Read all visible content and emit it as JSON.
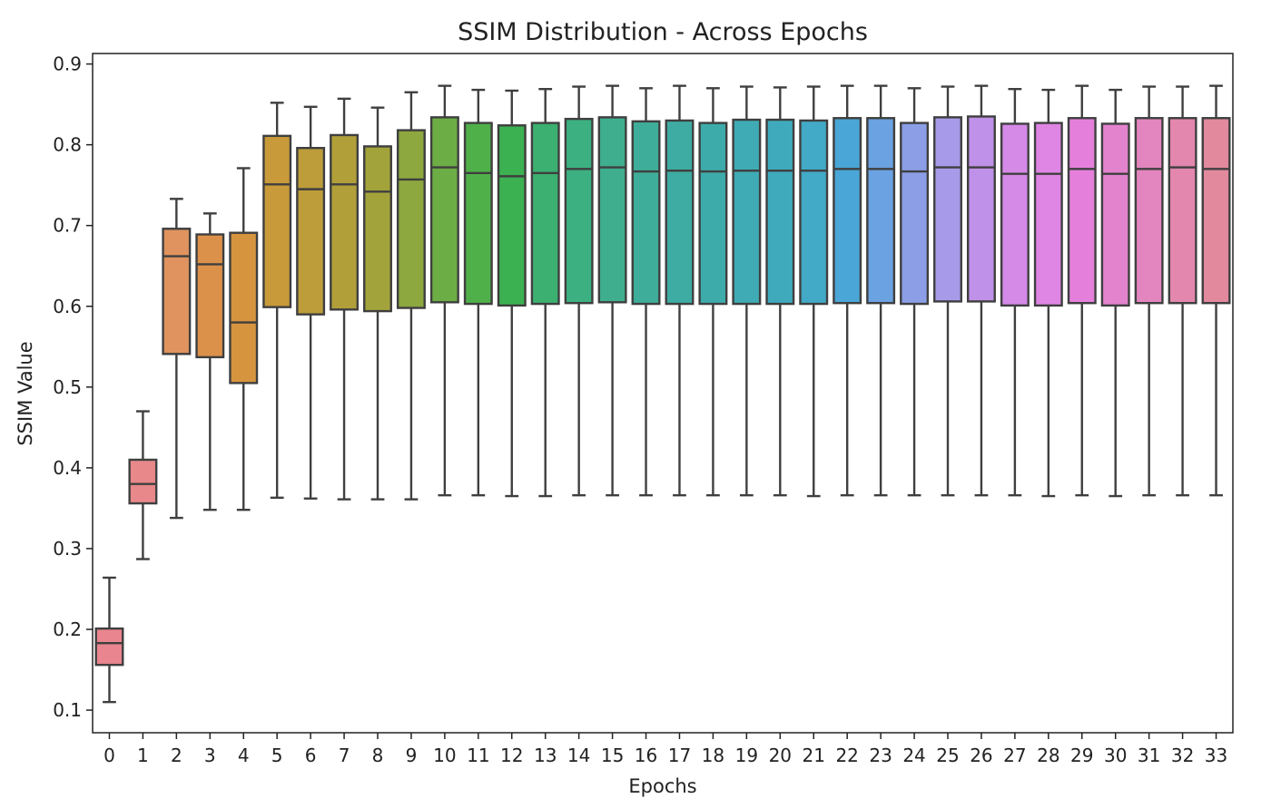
{
  "chart_data": {
    "type": "box",
    "title": "SSIM Distribution - Across Epochs",
    "xlabel": "Epochs",
    "ylabel": "SSIM Value",
    "ylim": [
      0.072,
      0.913
    ],
    "yticks": [
      0.1,
      0.2,
      0.3,
      0.4,
      0.5,
      0.6,
      0.7,
      0.8,
      0.9
    ],
    "ytick_labels": [
      "0.1",
      "0.2",
      "0.3",
      "0.4",
      "0.5",
      "0.6",
      "0.7",
      "0.8",
      "0.9"
    ],
    "grid": false,
    "legend": "none",
    "categories": [
      "0",
      "1",
      "2",
      "3",
      "4",
      "5",
      "6",
      "7",
      "8",
      "9",
      "10",
      "11",
      "12",
      "13",
      "14",
      "15",
      "16",
      "17",
      "18",
      "19",
      "20",
      "21",
      "22",
      "23",
      "24",
      "25",
      "26",
      "27",
      "28",
      "29",
      "30",
      "31",
      "32",
      "33"
    ],
    "boxes": [
      {
        "min": 0.11,
        "q1": 0.156,
        "median": 0.183,
        "q3": 0.201,
        "max": 0.264,
        "color": "#e8858e"
      },
      {
        "min": 0.287,
        "q1": 0.356,
        "median": 0.38,
        "q3": 0.41,
        "max": 0.47,
        "color": "#e8888a"
      },
      {
        "min": 0.338,
        "q1": 0.541,
        "median": 0.662,
        "q3": 0.696,
        "max": 0.733,
        "color": "#e0935f"
      },
      {
        "min": 0.348,
        "q1": 0.537,
        "median": 0.652,
        "q3": 0.689,
        "max": 0.715,
        "color": "#dc914a"
      },
      {
        "min": 0.348,
        "q1": 0.505,
        "median": 0.58,
        "q3": 0.691,
        "max": 0.771,
        "color": "#d7943f"
      },
      {
        "min": 0.363,
        "q1": 0.599,
        "median": 0.751,
        "q3": 0.811,
        "max": 0.852,
        "color": "#c99a3a"
      },
      {
        "min": 0.362,
        "q1": 0.59,
        "median": 0.745,
        "q3": 0.796,
        "max": 0.847,
        "color": "#bd9d3a"
      },
      {
        "min": 0.361,
        "q1": 0.596,
        "median": 0.751,
        "q3": 0.812,
        "max": 0.857,
        "color": "#b1a03a"
      },
      {
        "min": 0.361,
        "q1": 0.594,
        "median": 0.742,
        "q3": 0.798,
        "max": 0.846,
        "color": "#a3a33b"
      },
      {
        "min": 0.361,
        "q1": 0.598,
        "median": 0.757,
        "q3": 0.818,
        "max": 0.865,
        "color": "#8ca83f"
      },
      {
        "min": 0.366,
        "q1": 0.605,
        "median": 0.772,
        "q3": 0.834,
        "max": 0.873,
        "color": "#6cad45"
      },
      {
        "min": 0.366,
        "q1": 0.603,
        "median": 0.765,
        "q3": 0.827,
        "max": 0.868,
        "color": "#4fb04a"
      },
      {
        "min": 0.365,
        "q1": 0.601,
        "median": 0.761,
        "q3": 0.824,
        "max": 0.867,
        "color": "#3cb151"
      },
      {
        "min": 0.365,
        "q1": 0.603,
        "median": 0.765,
        "q3": 0.827,
        "max": 0.869,
        "color": "#3cb070"
      },
      {
        "min": 0.366,
        "q1": 0.604,
        "median": 0.77,
        "q3": 0.832,
        "max": 0.872,
        "color": "#3db081"
      },
      {
        "min": 0.366,
        "q1": 0.605,
        "median": 0.772,
        "q3": 0.834,
        "max": 0.873,
        "color": "#3eae8e"
      },
      {
        "min": 0.366,
        "q1": 0.603,
        "median": 0.767,
        "q3": 0.829,
        "max": 0.87,
        "color": "#3ead99"
      },
      {
        "min": 0.366,
        "q1": 0.603,
        "median": 0.768,
        "q3": 0.83,
        "max": 0.873,
        "color": "#3eaca2"
      },
      {
        "min": 0.366,
        "q1": 0.603,
        "median": 0.767,
        "q3": 0.827,
        "max": 0.87,
        "color": "#3eabab"
      },
      {
        "min": 0.366,
        "q1": 0.603,
        "median": 0.768,
        "q3": 0.831,
        "max": 0.872,
        "color": "#3fabb4"
      },
      {
        "min": 0.366,
        "q1": 0.603,
        "median": 0.768,
        "q3": 0.831,
        "max": 0.871,
        "color": "#40aabd"
      },
      {
        "min": 0.365,
        "q1": 0.603,
        "median": 0.768,
        "q3": 0.83,
        "max": 0.872,
        "color": "#42a9c6"
      },
      {
        "min": 0.366,
        "q1": 0.604,
        "median": 0.77,
        "q3": 0.833,
        "max": 0.873,
        "color": "#4aa6d6"
      },
      {
        "min": 0.366,
        "q1": 0.604,
        "median": 0.77,
        "q3": 0.833,
        "max": 0.873,
        "color": "#6aa2e2"
      },
      {
        "min": 0.366,
        "q1": 0.603,
        "median": 0.767,
        "q3": 0.827,
        "max": 0.87,
        "color": "#8b9ee6"
      },
      {
        "min": 0.366,
        "q1": 0.606,
        "median": 0.772,
        "q3": 0.834,
        "max": 0.872,
        "color": "#a79be9"
      },
      {
        "min": 0.366,
        "q1": 0.606,
        "median": 0.772,
        "q3": 0.835,
        "max": 0.873,
        "color": "#bf91e8"
      },
      {
        "min": 0.366,
        "q1": 0.601,
        "median": 0.764,
        "q3": 0.826,
        "max": 0.869,
        "color": "#d58ae8"
      },
      {
        "min": 0.365,
        "q1": 0.601,
        "median": 0.764,
        "q3": 0.827,
        "max": 0.868,
        "color": "#df86e4"
      },
      {
        "min": 0.366,
        "q1": 0.604,
        "median": 0.77,
        "q3": 0.833,
        "max": 0.873,
        "color": "#e480dc"
      },
      {
        "min": 0.365,
        "q1": 0.601,
        "median": 0.764,
        "q3": 0.826,
        "max": 0.868,
        "color": "#e383ce"
      },
      {
        "min": 0.366,
        "q1": 0.604,
        "median": 0.77,
        "q3": 0.833,
        "max": 0.872,
        "color": "#e385be"
      },
      {
        "min": 0.366,
        "q1": 0.604,
        "median": 0.772,
        "q3": 0.833,
        "max": 0.872,
        "color": "#e387ae"
      },
      {
        "min": 0.366,
        "q1": 0.604,
        "median": 0.77,
        "q3": 0.833,
        "max": 0.873,
        "color": "#e2899d"
      }
    ]
  }
}
